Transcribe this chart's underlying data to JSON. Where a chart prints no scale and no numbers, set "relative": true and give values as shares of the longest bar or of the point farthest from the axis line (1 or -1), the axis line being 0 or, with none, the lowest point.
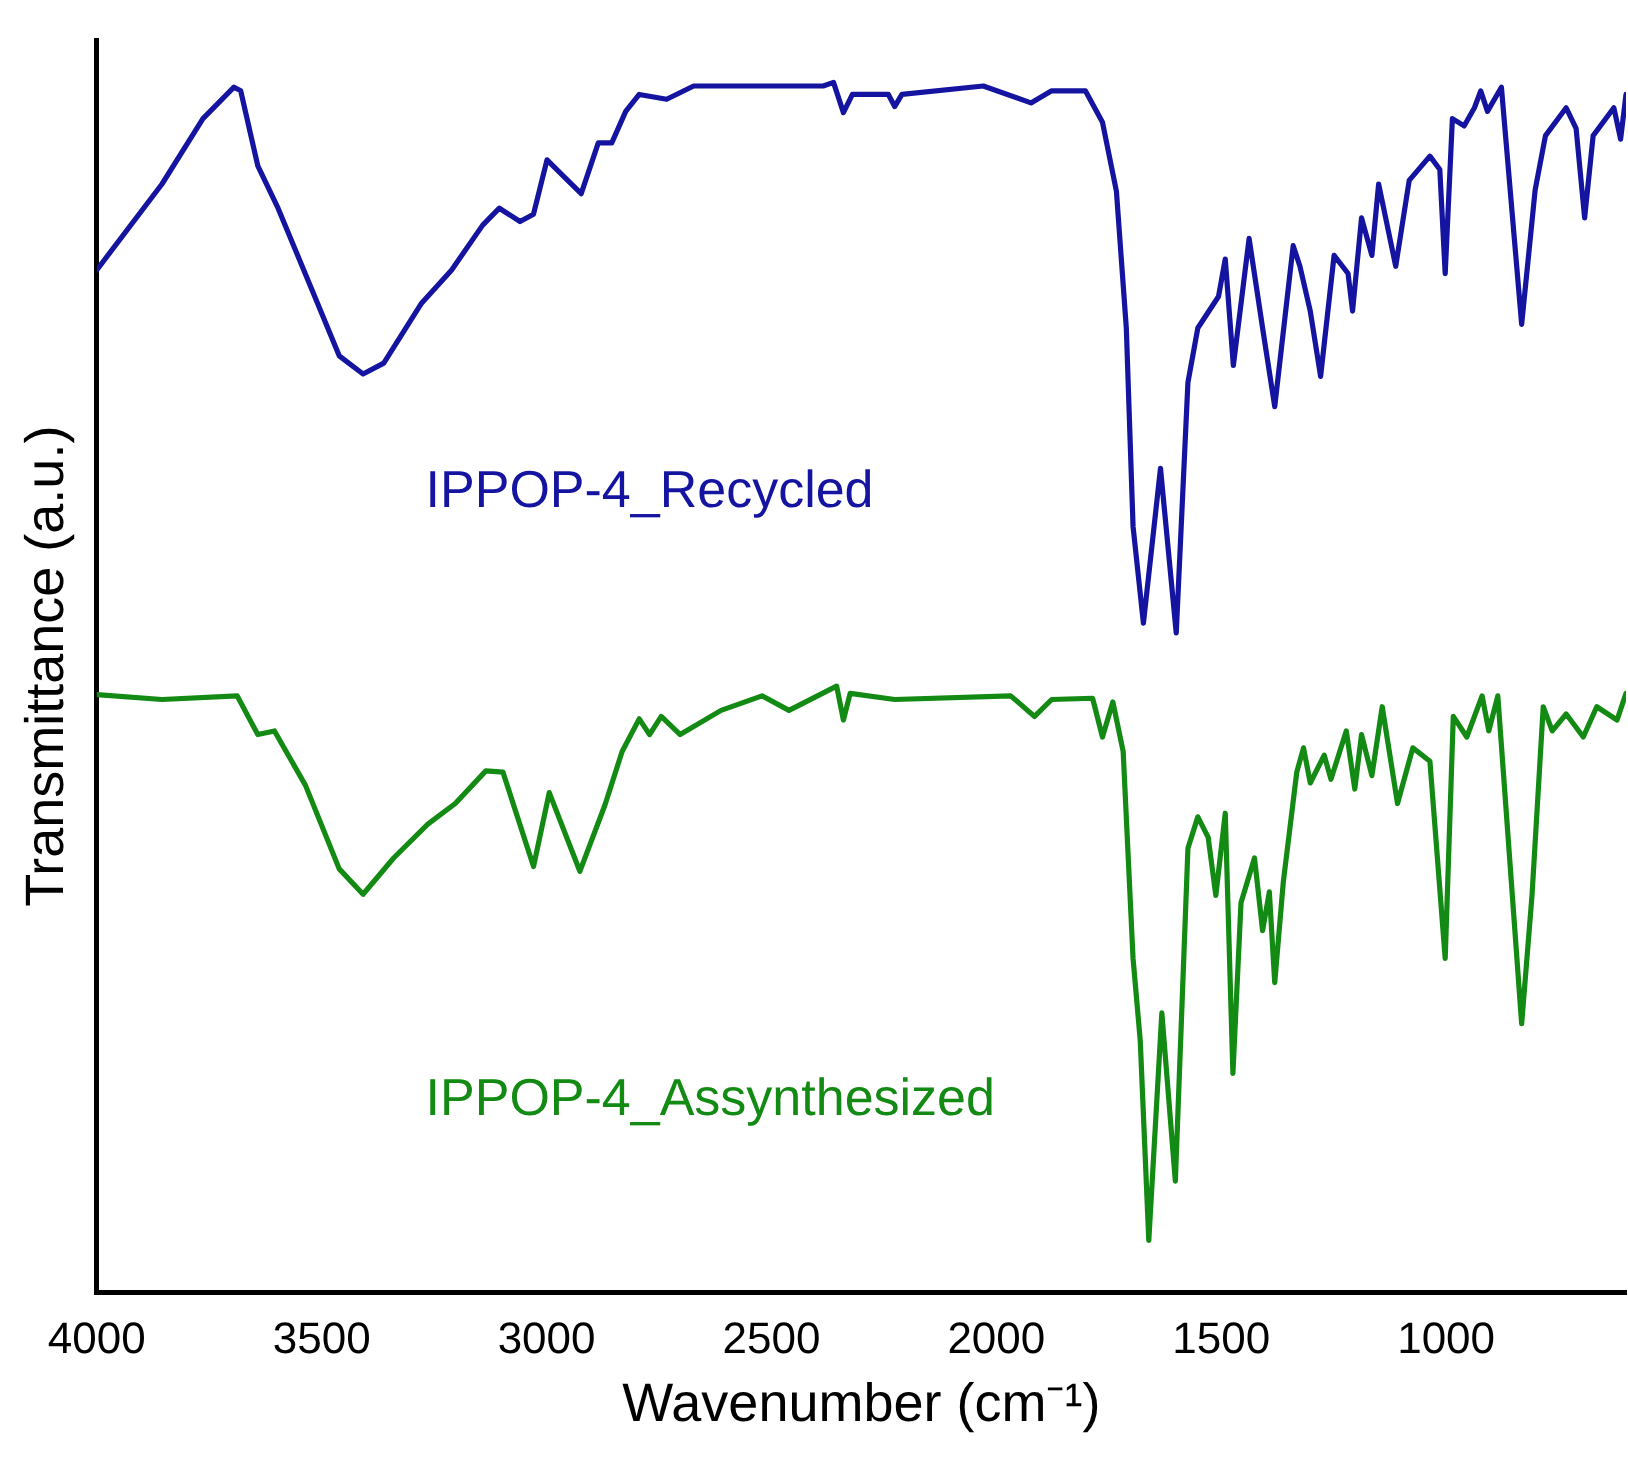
{
  "chart_data": {
    "type": "line",
    "relative": true,
    "xlabel": "Wavenumber (cm⁻¹)",
    "ylabel": "Transmittance (a.u.)",
    "xlim": [
      4000,
      600
    ],
    "xticks": [
      4000,
      3500,
      3000,
      2500,
      2000,
      1500,
      1000
    ],
    "grid": false,
    "legend": false,
    "marker": "none",
    "line_style": "solid",
    "series": [
      {
        "name": "IPPOP-4_Recycled",
        "color": "#1414a0",
        "x": [
          4000,
          3855,
          3764,
          3695,
          3680,
          3642,
          3597,
          3521,
          3461,
          3408,
          3362,
          3279,
          3211,
          3142,
          3105,
          3059,
          3029,
          2999,
          2953,
          2923,
          2885,
          2855,
          2824,
          2794,
          2733,
          2673,
          2385,
          2362,
          2340,
          2320,
          2240,
          2226,
          2210,
          2029,
          1923,
          1877,
          1802,
          1764,
          1733,
          1711,
          1696,
          1673,
          1635,
          1600,
          1574,
          1552,
          1506,
          1491,
          1473,
          1438,
          1408,
          1381,
          1340,
          1325,
          1302,
          1279,
          1249,
          1218,
          1208,
          1188,
          1165,
          1150,
          1112,
          1082,
          1036,
          1014,
          1002,
          986,
          960,
          937,
          923,
          908,
          877,
          832,
          802,
          779,
          733,
          711,
          692,
          673,
          627,
          612,
          600
        ],
        "values": [
          0.845,
          0.916,
          0.97,
          0.996,
          0.993,
          0.931,
          0.896,
          0.828,
          0.774,
          0.759,
          0.768,
          0.817,
          0.845,
          0.882,
          0.896,
          0.885,
          0.891,
          0.936,
          0.919,
          0.908,
          0.95,
          0.95,
          0.976,
          0.99,
          0.986,
          0.997,
          0.997,
          1,
          0.975,
          0.99,
          0.99,
          0.98,
          0.99,
          0.997,
          0.983,
          0.993,
          0.993,
          0.967,
          0.91,
          0.797,
          0.633,
          0.553,
          0.681,
          0.545,
          0.752,
          0.797,
          0.823,
          0.854,
          0.766,
          0.871,
          0.797,
          0.732,
          0.865,
          0.848,
          0.811,
          0.757,
          0.857,
          0.842,
          0.811,
          0.888,
          0.857,
          0.916,
          0.848,
          0.919,
          0.939,
          0.928,
          0.842,
          0.97,
          0.964,
          0.979,
          0.993,
          0.976,
          0.996,
          0.8,
          0.911,
          0.956,
          0.979,
          0.962,
          0.888,
          0.956,
          0.979,
          0.953,
          0.99
        ]
      },
      {
        "name": "IPPOP-4_Assynthesized",
        "color": "#138a13",
        "x": [
          4000,
          3855,
          3688,
          3642,
          3605,
          3536,
          3461,
          3408,
          3340,
          3264,
          3203,
          3135,
          3097,
          3029,
          2994,
          2926,
          2870,
          2832,
          2794,
          2771,
          2745,
          2703,
          2612,
          2521,
          2461,
          2355,
          2340,
          2325,
          2226,
          1968,
          1915,
          1877,
          1786,
          1764,
          1741,
          1718,
          1696,
          1680,
          1661,
          1632,
          1602,
          1574,
          1552,
          1529,
          1512,
          1491,
          1474,
          1456,
          1426,
          1408,
          1393,
          1381,
          1362,
          1332,
          1317,
          1302,
          1271,
          1256,
          1222,
          1203,
          1188,
          1165,
          1142,
          1108,
          1074,
          1036,
          1002,
          984,
          954,
          920,
          905,
          885,
          832,
          809,
          784,
          764,
          733,
          695,
          665,
          620,
          600
        ],
        "values": [
          0.494,
          0.49,
          0.493,
          0.461,
          0.464,
          0.419,
          0.35,
          0.329,
          0.359,
          0.387,
          0.404,
          0.431,
          0.43,
          0.352,
          0.413,
          0.348,
          0.403,
          0.447,
          0.474,
          0.461,
          0.476,
          0.461,
          0.481,
          0.493,
          0.481,
          0.501,
          0.473,
          0.495,
          0.49,
          0.493,
          0.476,
          0.49,
          0.491,
          0.459,
          0.488,
          0.447,
          0.276,
          0.208,
          0.043,
          0.231,
          0.092,
          0.367,
          0.393,
          0.376,
          0.328,
          0.396,
          0.181,
          0.322,
          0.359,
          0.299,
          0.331,
          0.256,
          0.339,
          0.43,
          0.45,
          0.421,
          0.444,
          0.424,
          0.464,
          0.416,
          0.461,
          0.427,
          0.484,
          0.404,
          0.45,
          0.439,
          0.276,
          0.476,
          0.459,
          0.493,
          0.464,
          0.493,
          0.222,
          0.328,
          0.484,
          0.464,
          0.478,
          0.459,
          0.484,
          0.473,
          0.495
        ]
      }
    ]
  }
}
